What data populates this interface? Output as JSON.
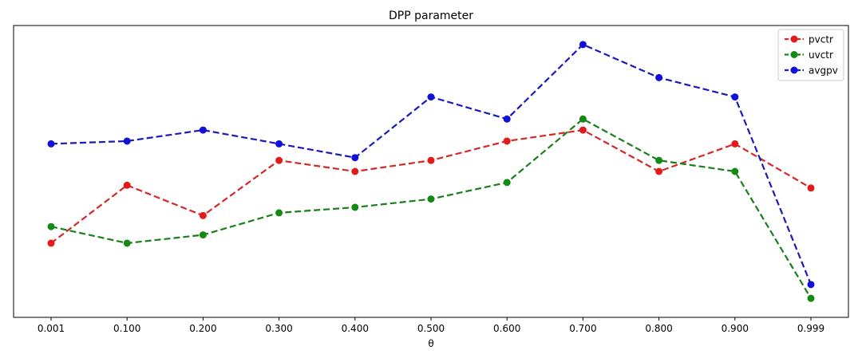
{
  "chart_data": {
    "type": "line",
    "title": "DPP parameter",
    "xlabel": "θ",
    "ylabel": "",
    "categories": [
      "0.001",
      "0.100",
      "0.200",
      "0.300",
      "0.400",
      "0.500",
      "0.600",
      "0.700",
      "0.800",
      "0.900",
      "0.999"
    ],
    "ylim": [
      0,
      1
    ],
    "grid": false,
    "legend_position": "top-right",
    "series": [
      {
        "name": "pvctr",
        "color": "#d62728",
        "marker_color": "#e31a1c",
        "values": [
          0.24,
          0.45,
          0.34,
          0.54,
          0.5,
          0.54,
          0.61,
          0.65,
          0.5,
          0.6,
          0.44
        ]
      },
      {
        "name": "uvctr",
        "color": "#1a7f1a",
        "marker_color": "#138a13",
        "values": [
          0.3,
          0.24,
          0.27,
          0.35,
          0.37,
          0.4,
          0.46,
          0.69,
          0.54,
          0.5,
          0.04
        ]
      },
      {
        "name": "avgpv",
        "color": "#1a1ab8",
        "marker_color": "#1010d8",
        "values": [
          0.6,
          0.61,
          0.65,
          0.6,
          0.55,
          0.77,
          0.69,
          0.96,
          0.84,
          0.77,
          0.09
        ]
      }
    ]
  }
}
